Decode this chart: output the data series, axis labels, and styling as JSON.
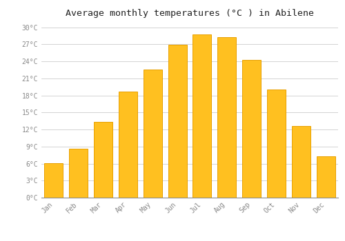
{
  "months": [
    "Jan",
    "Feb",
    "Mar",
    "Apr",
    "May",
    "Jun",
    "Jul",
    "Aug",
    "Sep",
    "Oct",
    "Nov",
    "Dec"
  ],
  "values": [
    6.1,
    8.6,
    13.4,
    18.7,
    22.6,
    26.9,
    28.7,
    28.3,
    24.3,
    19.0,
    12.6,
    7.3
  ],
  "bar_color": "#FFC020",
  "bar_edge_color": "#E8A000",
  "background_color": "#FFFFFF",
  "grid_color": "#CCCCCC",
  "title": "Average monthly temperatures (°C ) in Abilene",
  "title_fontsize": 9.5,
  "tick_label_color": "#888888",
  "ylim": [
    0,
    31
  ],
  "yticks": [
    0,
    3,
    6,
    9,
    12,
    15,
    18,
    21,
    24,
    27,
    30
  ],
  "ytick_labels": [
    "0°C",
    "3°C",
    "6°C",
    "9°C",
    "12°C",
    "15°C",
    "18°C",
    "21°C",
    "24°C",
    "27°C",
    "30°C"
  ]
}
